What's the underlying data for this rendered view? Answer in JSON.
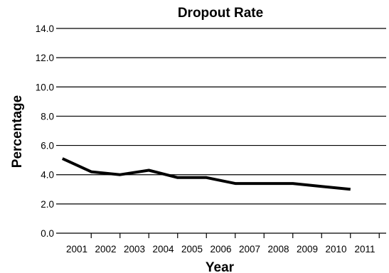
{
  "chart_data": {
    "type": "line",
    "title": "Dropout Rate",
    "xlabel": "Year",
    "ylabel": "Percentage",
    "x_tick_labels": [
      "2001",
      "2002",
      "2003",
      "2004",
      "2005",
      "2006",
      "2007",
      "2008",
      "2009",
      "2010",
      "2011"
    ],
    "y_tick_labels": [
      "0.0",
      "2.0",
      "4.0",
      "6.0",
      "8.0",
      "10.0",
      "12.0",
      "14.0"
    ],
    "ylim": [
      0,
      14
    ],
    "grid": true,
    "series": [
      {
        "x": [
          2000.5,
          2001.5,
          2002.5,
          2003.5,
          2004.5,
          2005.5,
          2006.5,
          2007.5,
          2008.5,
          2009.5,
          2010.5
        ],
        "values": [
          5.1,
          4.2,
          4.0,
          4.3,
          3.8,
          3.8,
          3.4,
          3.4,
          3.4,
          3.2,
          3.0
        ],
        "color": "#000000"
      }
    ]
  }
}
